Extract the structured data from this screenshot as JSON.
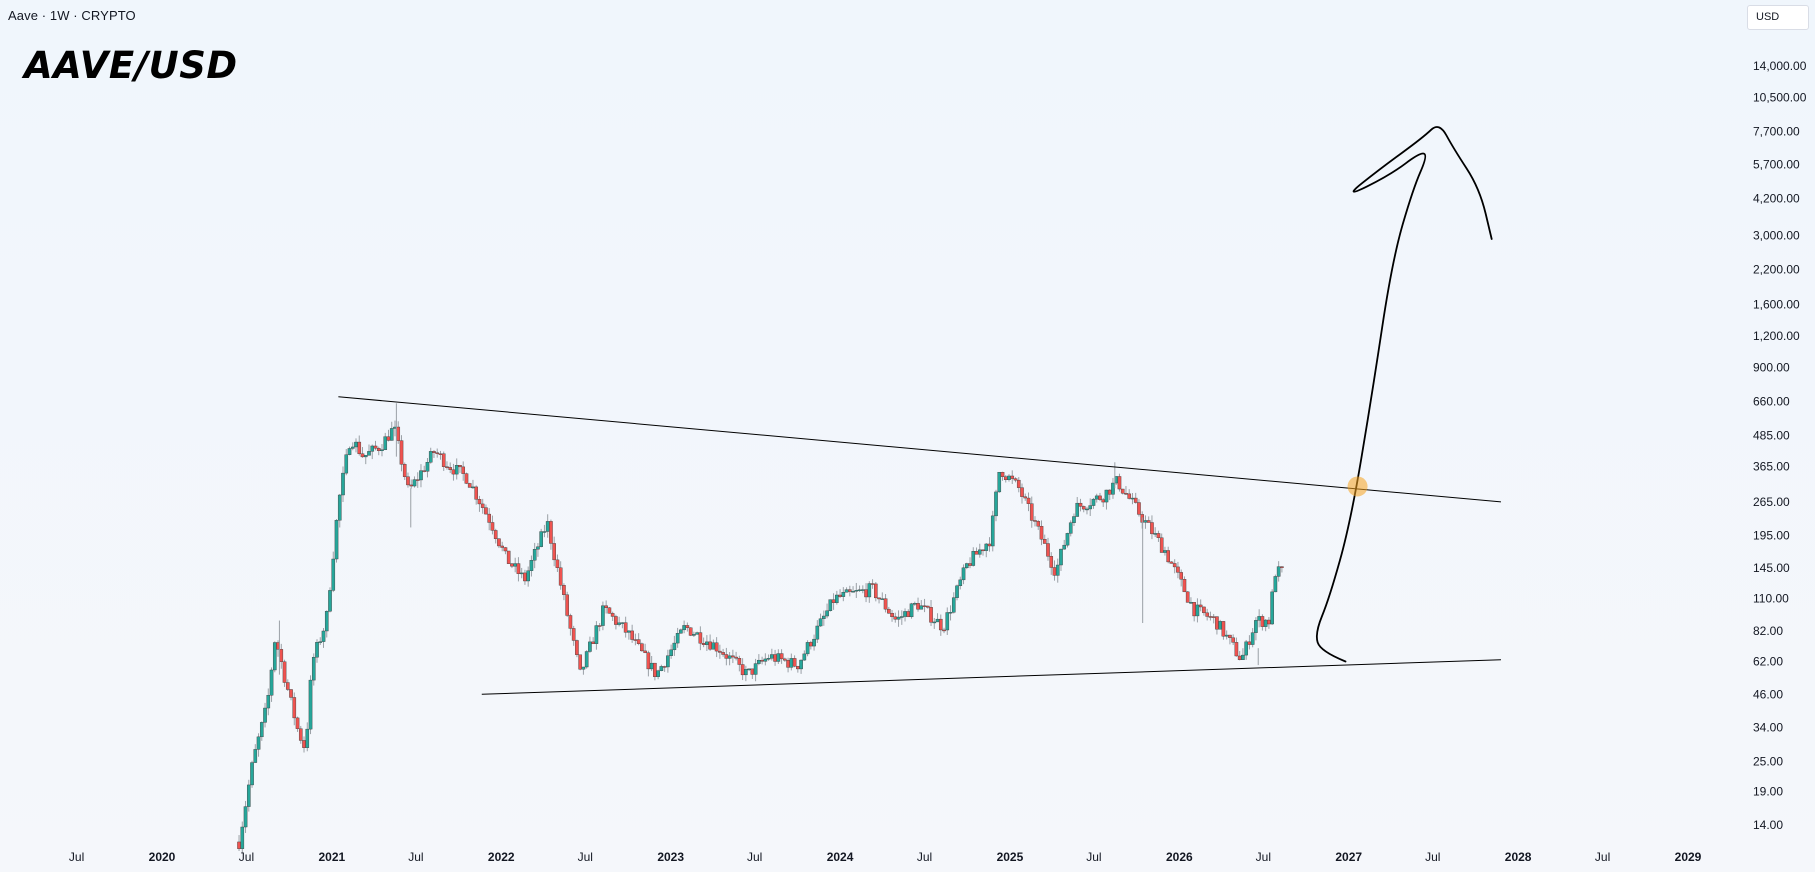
{
  "header": {
    "title": "Aave · 1W · CRYPTO",
    "currency": "USD"
  },
  "chart_data": {
    "type": "candlestick",
    "title": "AAVE/USD",
    "yscale": "log",
    "ylim": [
      12,
      16000
    ],
    "y_ticks": [
      "14,000.00",
      "10,500.00",
      "7,700.00",
      "5,700.00",
      "4,200.00",
      "3,000.00",
      "2,200.00",
      "1,600.00",
      "1,200.00",
      "900.00",
      "660.00",
      "485.00",
      "365.00",
      "265.00",
      "195.00",
      "145.00",
      "110.00",
      "82.00",
      "62.00",
      "46.00",
      "34.00",
      "25.00",
      "19.00",
      "14.00"
    ],
    "x_ticks": [
      "Jul",
      "2020",
      "Jul",
      "2021",
      "Jul",
      "2022",
      "Jul",
      "2023",
      "Jul",
      "2024",
      "Jul",
      "2025",
      "Jul",
      "2026",
      "Jul",
      "2027",
      "Jul",
      "2028",
      "Jul",
      "2029"
    ],
    "grid": false,
    "price_path": [
      {
        "date": "2020-06-15",
        "price": 12
      },
      {
        "date": "2020-07-15",
        "price": 25
      },
      {
        "date": "2020-08-15",
        "price": 42
      },
      {
        "date": "2020-09-01",
        "price": 78
      },
      {
        "date": "2020-09-20",
        "price": 55
      },
      {
        "date": "2020-10-20",
        "price": 33
      },
      {
        "date": "2020-11-05",
        "price": 28
      },
      {
        "date": "2020-11-20",
        "price": 62
      },
      {
        "date": "2020-12-20",
        "price": 90
      },
      {
        "date": "2021-01-15",
        "price": 260
      },
      {
        "date": "2021-02-10",
        "price": 480
      },
      {
        "date": "2021-03-10",
        "price": 400
      },
      {
        "date": "2021-04-15",
        "price": 440
      },
      {
        "date": "2021-05-15",
        "price": 520
      },
      {
        "date": "2021-06-15",
        "price": 290
      },
      {
        "date": "2021-08-10",
        "price": 420
      },
      {
        "date": "2021-09-10",
        "price": 370
      },
      {
        "date": "2021-10-20",
        "price": 330
      },
      {
        "date": "2021-12-10",
        "price": 220
      },
      {
        "date": "2022-01-10",
        "price": 160
      },
      {
        "date": "2022-02-20",
        "price": 130
      },
      {
        "date": "2022-04-10",
        "price": 220
      },
      {
        "date": "2022-06-20",
        "price": 55
      },
      {
        "date": "2022-08-10",
        "price": 100
      },
      {
        "date": "2022-10-01",
        "price": 80
      },
      {
        "date": "2022-12-01",
        "price": 55
      },
      {
        "date": "2023-02-01",
        "price": 85
      },
      {
        "date": "2023-04-15",
        "price": 70
      },
      {
        "date": "2023-06-15",
        "price": 55
      },
      {
        "date": "2023-08-01",
        "price": 65
      },
      {
        "date": "2023-10-01",
        "price": 60
      },
      {
        "date": "2023-12-20",
        "price": 110
      },
      {
        "date": "2024-03-10",
        "price": 120
      },
      {
        "date": "2024-05-01",
        "price": 90
      },
      {
        "date": "2024-06-15",
        "price": 105
      },
      {
        "date": "2024-08-10",
        "price": 85
      },
      {
        "date": "2024-10-01",
        "price": 150
      },
      {
        "date": "2024-11-20",
        "price": 190
      },
      {
        "date": "2024-12-10",
        "price": 360
      },
      {
        "date": "2025-01-20",
        "price": 300
      },
      {
        "date": "2025-03-10",
        "price": 190
      },
      {
        "date": "2025-04-10",
        "price": 140
      },
      {
        "date": "2025-05-20",
        "price": 250
      },
      {
        "date": "2025-07-20",
        "price": 280
      },
      {
        "date": "2025-08-20",
        "price": 320
      },
      {
        "date": "2025-10-20",
        "price": 220
      },
      {
        "date": "2025-12-01",
        "price": 170
      },
      {
        "date": "2026-02-01",
        "price": 100
      },
      {
        "date": "2026-03-20",
        "price": 90
      },
      {
        "date": "2026-05-15",
        "price": 63
      },
      {
        "date": "2026-06-15",
        "price": 90
      },
      {
        "date": "2026-07-15",
        "price": 90
      },
      {
        "date": "2026-07-25",
        "price": 140
      },
      {
        "date": "2026-08-15",
        "price": 140
      }
    ],
    "spikes": [
      {
        "date": "2020-09-10",
        "low": 55,
        "high": 90
      },
      {
        "date": "2021-05-20",
        "low": 400,
        "high": 650
      },
      {
        "date": "2021-06-20",
        "low": 210,
        "high": 300
      },
      {
        "date": "2025-08-15",
        "low": 300,
        "high": 380
      },
      {
        "date": "2025-10-14",
        "low": 88,
        "high": 230
      },
      {
        "date": "2026-06-20",
        "low": 60,
        "high": 70
      }
    ],
    "annotations": {
      "upper_trendline": [
        {
          "date": "2021-01-15",
          "price": 690
        },
        {
          "date": "2027-11-25",
          "price": 265
        }
      ],
      "lower_trendline": [
        {
          "date": "2021-11-20",
          "price": 46
        },
        {
          "date": "2027-11-25",
          "price": 63
        }
      ],
      "breakout_marker": {
        "date": "2027-01-20",
        "price": 305,
        "color": "#f6a21e"
      },
      "projection_path": [
        {
          "date": "2026-12-25",
          "price": 62
        },
        {
          "date": "2026-11-01",
          "price": 68
        },
        {
          "date": "2026-10-20",
          "price": 80
        },
        {
          "date": "2026-11-20",
          "price": 110
        },
        {
          "date": "2027-01-05",
          "price": 220
        },
        {
          "date": "2027-02-20",
          "price": 700
        },
        {
          "date": "2027-04-05",
          "price": 2400
        },
        {
          "date": "2027-05-20",
          "price": 4600
        },
        {
          "date": "2027-06-20",
          "price": 6200
        },
        {
          "date": "2027-06-05",
          "price": 6400
        },
        {
          "date": "2027-04-01",
          "price": 5200
        },
        {
          "date": "2026-12-20",
          "price": 4200
        },
        {
          "date": "2027-03-10",
          "price": 5500
        },
        {
          "date": "2027-06-10",
          "price": 7300
        },
        {
          "date": "2027-07-15",
          "price": 8400
        },
        {
          "date": "2027-08-15",
          "price": 6600
        },
        {
          "date": "2027-10-10",
          "price": 4600
        },
        {
          "date": "2027-11-05",
          "price": 2900
        }
      ]
    },
    "colors": {
      "up": "#26a69a",
      "down": "#ef5350",
      "wick": "#9aa0a6",
      "lines": "#000000"
    }
  }
}
